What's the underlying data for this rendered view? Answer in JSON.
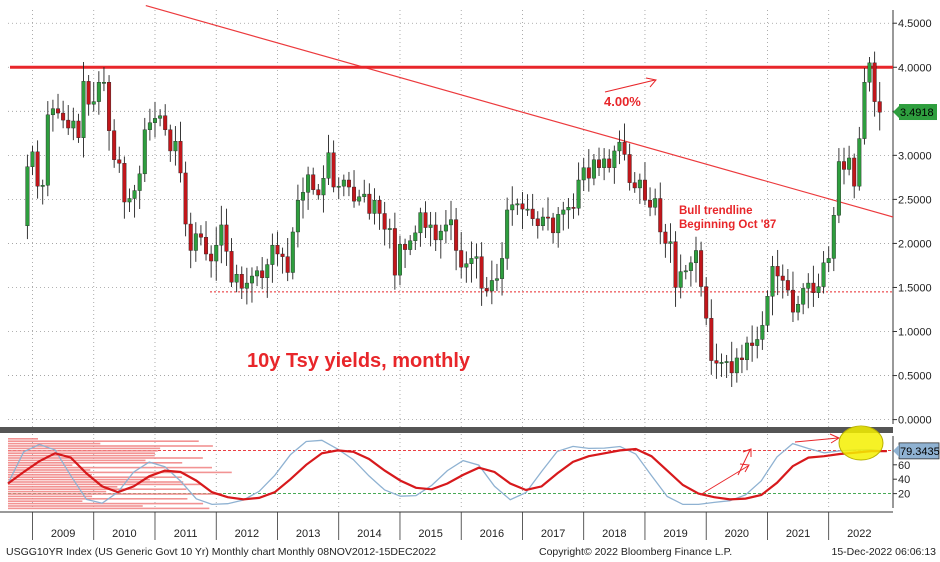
{
  "chart_data": {
    "type": "candlestick",
    "title": "10y Tsy yields, monthly",
    "years": [
      "2009",
      "2010",
      "2011",
      "2012",
      "2013",
      "2014",
      "2015",
      "2016",
      "2017",
      "2018",
      "2019",
      "2020",
      "2021",
      "2022"
    ],
    "yticks": [
      "4.5000",
      "4.0000",
      "3.5000",
      "3.0000",
      "2.5000",
      "2.0000",
      "1.5000",
      "1.0000",
      "0.5000",
      "0.0000"
    ],
    "ytick_values": [
      4.5,
      4.0,
      3.5,
      3.0,
      2.5,
      2.0,
      1.5,
      1.0,
      0.5,
      0.0
    ],
    "ylim": [
      -0.05,
      4.65
    ],
    "last_value_label": "3.4918",
    "last_value": 3.4918,
    "resistance_level": 4.0,
    "resistance_label": "4.00%",
    "support_level": 1.45,
    "trendline": {
      "from": [
        2010.85,
        4.7
      ],
      "to": [
        2023.0,
        2.3
      ]
    },
    "trendline_label_1": "Bull trendline",
    "trendline_label_2": "Beginning Oct '87",
    "monthly_close": [
      2.87,
      3.04,
      2.65,
      2.66,
      3.46,
      3.53,
      3.48,
      3.4,
      3.31,
      3.39,
      3.2,
      3.84,
      3.58,
      3.61,
      3.83,
      3.83,
      3.28,
      2.95,
      2.91,
      2.47,
      2.51,
      2.6,
      2.79,
      3.29,
      3.37,
      3.42,
      3.45,
      3.29,
      3.05,
      3.16,
      2.8,
      2.22,
      1.92,
      2.11,
      2.07,
      1.88,
      1.8,
      1.98,
      2.21,
      1.91,
      1.56,
      1.65,
      1.49,
      1.55,
      1.63,
      1.69,
      1.61,
      1.76,
      1.98,
      1.88,
      1.85,
      1.67,
      2.13,
      2.49,
      2.58,
      2.78,
      2.61,
      2.55,
      2.74,
      3.03,
      2.64,
      2.65,
      2.72,
      2.64,
      2.48,
      2.53,
      2.56,
      2.34,
      2.49,
      2.34,
      2.16,
      2.17,
      1.64,
      1.99,
      1.93,
      2.03,
      2.12,
      2.35,
      2.18,
      2.21,
      2.04,
      2.14,
      2.21,
      2.27,
      1.92,
      1.73,
      1.77,
      1.83,
      1.85,
      1.49,
      1.46,
      1.58,
      1.6,
      1.83,
      2.38,
      2.44,
      2.45,
      2.39,
      2.39,
      2.28,
      2.2,
      2.3,
      2.29,
      2.12,
      2.33,
      2.38,
      2.41,
      2.4,
      2.72,
      2.86,
      2.74,
      2.95,
      2.86,
      2.96,
      2.86,
      3.05,
      3.15,
      3.01,
      2.69,
      2.63,
      2.72,
      2.49,
      2.41,
      2.51,
      2.13,
      2.0,
      2.02,
      1.5,
      1.68,
      1.69,
      1.78,
      1.92,
      1.51,
      1.15,
      0.67,
      0.64,
      0.65,
      0.66,
      0.53,
      0.7,
      0.68,
      0.87,
      0.84,
      0.91,
      1.07,
      1.4,
      1.74,
      1.63,
      1.58,
      1.47,
      1.22,
      1.31,
      1.49,
      1.55,
      1.44,
      1.51,
      1.78,
      1.83,
      2.32,
      2.93,
      2.84,
      2.97,
      2.65,
      3.19,
      3.83,
      4.05,
      3.61,
      3.49
    ],
    "oscillator": {
      "last_value_label": "79.3435",
      "last_value": 79.3435,
      "yticks": [
        "60",
        "40",
        "20"
      ],
      "ytick_values": [
        60,
        40,
        20
      ],
      "ylim": [
        0,
        100
      ],
      "levels": [
        80,
        20
      ],
      "sampled_values": [
        34,
        50,
        65,
        76,
        70,
        48,
        30,
        22,
        30,
        44,
        52,
        50,
        38,
        22,
        15,
        12,
        14,
        22,
        40,
        60,
        76,
        80,
        78,
        68,
        52,
        38,
        28,
        26,
        34,
        46,
        56,
        50,
        34,
        25,
        30,
        48,
        64,
        72,
        76,
        80,
        82,
        72,
        52,
        32,
        20,
        15,
        12,
        13,
        18,
        35,
        58,
        70,
        72,
        75,
        77,
        79,
        79
      ]
    },
    "footer_left": "USGG10YR Index (US Generic Govt 10 Yr) Monthly chart  Monthly 08NOV2012-15DEC2022",
    "footer_center": "Copyright© 2022 Bloomberg Finance L.P.",
    "footer_right": "15-Dec-2022 06:06:13"
  }
}
